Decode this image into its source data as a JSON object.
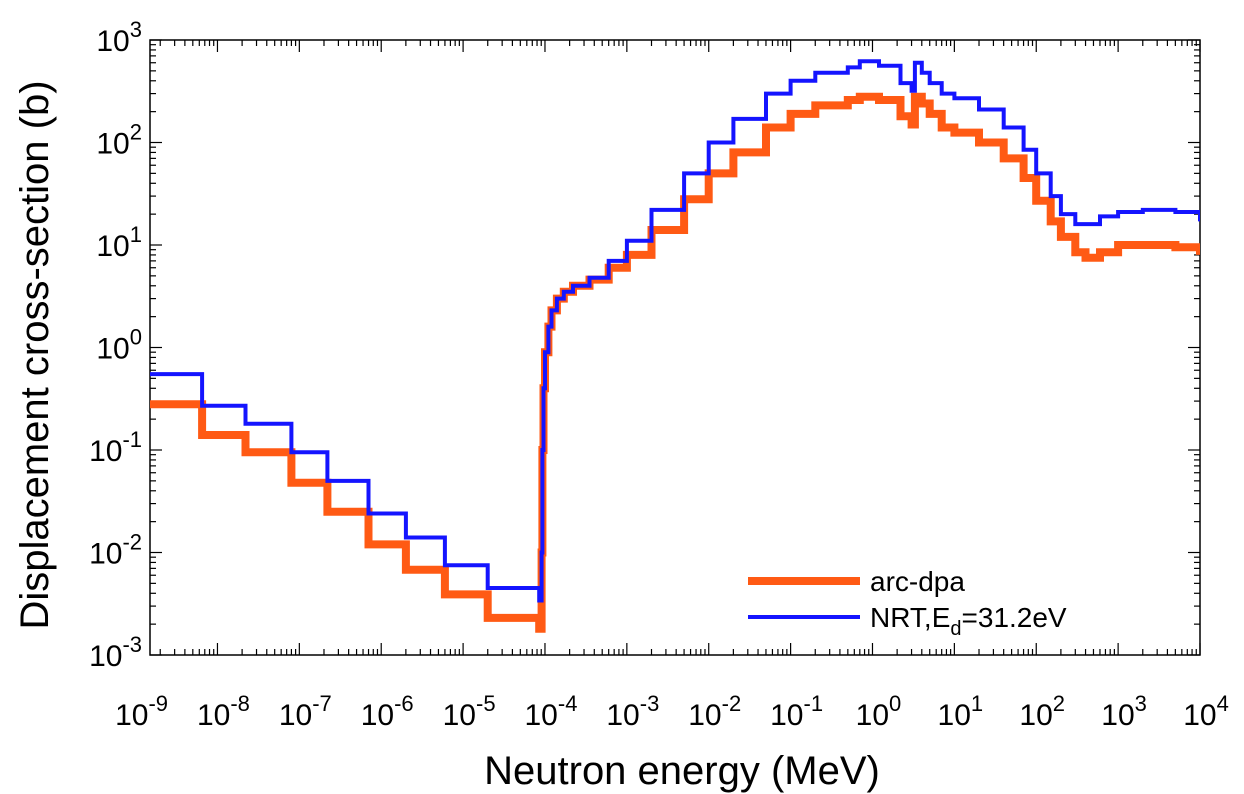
{
  "chart_data": {
    "type": "line",
    "title": "",
    "xlabel": "Neutron energy (MeV)",
    "ylabel": "Displacement cross-section (b)",
    "xscale": "log",
    "yscale": "log",
    "xlim": [
      1.5e-09,
      10000.0
    ],
    "ylim": [
      0.001,
      1000
    ],
    "grid": false,
    "x_ticks": [
      {
        "base": "10",
        "exp": "-9",
        "value": 1e-09
      },
      {
        "base": "10",
        "exp": "-8",
        "value": 1e-08
      },
      {
        "base": "10",
        "exp": "-7",
        "value": 1e-07
      },
      {
        "base": "10",
        "exp": "-6",
        "value": 1e-06
      },
      {
        "base": "10",
        "exp": "-5",
        "value": 1e-05
      },
      {
        "base": "10",
        "exp": "-4",
        "value": 0.0001
      },
      {
        "base": "10",
        "exp": "-3",
        "value": 0.001
      },
      {
        "base": "10",
        "exp": "-2",
        "value": 0.01
      },
      {
        "base": "10",
        "exp": "-1",
        "value": 0.1
      },
      {
        "base": "10",
        "exp": "0",
        "value": 1
      },
      {
        "base": "10",
        "exp": "1",
        "value": 10
      },
      {
        "base": "10",
        "exp": "2",
        "value": 100
      },
      {
        "base": "10",
        "exp": "3",
        "value": 1000
      },
      {
        "base": "10",
        "exp": "4",
        "value": 10000
      }
    ],
    "y_ticks": [
      {
        "base": "10",
        "exp": "-3",
        "value": 0.001
      },
      {
        "base": "10",
        "exp": "-2",
        "value": 0.01
      },
      {
        "base": "10",
        "exp": "-1",
        "value": 0.1
      },
      {
        "base": "10",
        "exp": "0",
        "value": 1
      },
      {
        "base": "10",
        "exp": "1",
        "value": 10
      },
      {
        "base": "10",
        "exp": "2",
        "value": 100
      },
      {
        "base": "10",
        "exp": "3",
        "value": 1000
      }
    ],
    "legend": {
      "position": "bottom-right",
      "entries": [
        {
          "series": "arc-dpa",
          "parts": [
            {
              "text": "arc-dpa",
              "sub": false
            }
          ]
        },
        {
          "series": "NRT,Ed=31.2eV",
          "parts": [
            {
              "text": "NRT,E",
              "sub": false
            },
            {
              "text": "d",
              "sub": true
            },
            {
              "text": "=31.2eV",
              "sub": false
            }
          ]
        }
      ]
    },
    "series": [
      {
        "name": "arc-dpa",
        "color": "#ff5a14",
        "style": "step",
        "x": [
          1.5e-09,
          6.5e-09,
          2.2e-08,
          8e-08,
          2.2e-07,
          7e-07,
          2e-06,
          6e-06,
          2e-05,
          8.5e-05,
          9e-05,
          9.1e-05,
          9.3e-05,
          9.6e-05,
          0.0001,
          0.00011,
          0.00012,
          0.00014,
          0.00017,
          0.00022,
          0.00035,
          0.0006,
          0.001,
          0.002,
          0.005,
          0.01,
          0.02,
          0.05,
          0.1,
          0.2,
          0.5,
          0.7,
          1.2,
          2.2,
          3.0,
          3.3,
          4.0,
          5.0,
          7.0,
          10,
          20,
          40,
          70,
          100,
          150,
          200,
          300,
          400,
          600,
          1000,
          2000,
          5000,
          10000
        ],
        "y": [
          0.28,
          0.14,
          0.095,
          0.048,
          0.025,
          0.012,
          0.0068,
          0.0039,
          0.0023,
          0.0018,
          0.0018,
          0.01,
          0.1,
          0.4,
          0.9,
          1.6,
          2.3,
          3.0,
          3.5,
          4.0,
          4.6,
          6.0,
          8.0,
          14,
          28,
          50,
          80,
          140,
          190,
          230,
          260,
          280,
          260,
          180,
          150,
          280,
          240,
          190,
          140,
          125,
          100,
          70,
          45,
          27,
          17,
          12,
          8.5,
          7.5,
          8.5,
          10,
          10,
          9.5,
          8
        ]
      },
      {
        "name": "NRT,Ed=31.2eV",
        "color": "#1414ff",
        "style": "step",
        "x": [
          1.5e-09,
          6.5e-09,
          2.2e-08,
          8e-08,
          2.2e-07,
          7e-07,
          2e-06,
          6e-06,
          2e-05,
          8.5e-05,
          9e-05,
          9.1e-05,
          9.3e-05,
          9.6e-05,
          0.0001,
          0.00011,
          0.00012,
          0.00014,
          0.00017,
          0.00022,
          0.00035,
          0.0006,
          0.001,
          0.002,
          0.005,
          0.01,
          0.02,
          0.05,
          0.1,
          0.2,
          0.5,
          0.7,
          1.2,
          2.2,
          3.0,
          3.3,
          4.0,
          5.0,
          7.0,
          10,
          20,
          40,
          70,
          100,
          150,
          200,
          300,
          400,
          600,
          1000,
          2000,
          5000,
          10000
        ],
        "y": [
          0.55,
          0.27,
          0.18,
          0.095,
          0.05,
          0.024,
          0.014,
          0.0075,
          0.0045,
          0.0034,
          0.0034,
          0.01,
          0.1,
          0.4,
          0.9,
          1.6,
          2.3,
          3.0,
          3.5,
          4.0,
          4.8,
          7.0,
          11,
          22,
          50,
          100,
          170,
          300,
          400,
          480,
          540,
          620,
          560,
          380,
          320,
          600,
          480,
          380,
          300,
          270,
          210,
          140,
          85,
          50,
          30,
          20,
          16,
          16,
          19,
          21,
          22,
          21,
          17
        ]
      }
    ]
  }
}
